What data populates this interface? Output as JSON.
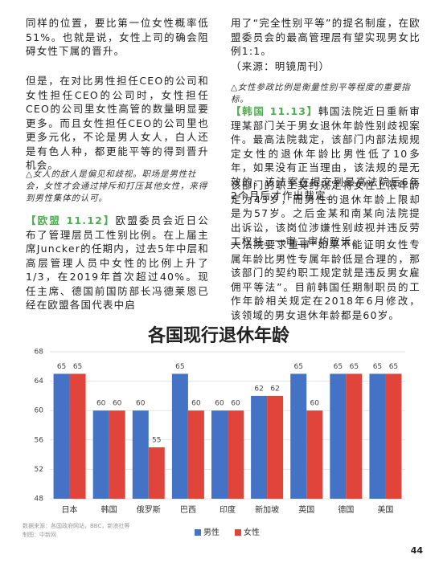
{
  "left_column": [
    {
      "text": "同样的位置，要比第一位女性概率低51%。也就是说，女性上司的确会阻碍女性下属的晋升。"
    },
    {
      "text": "但是，在对比男性担任CEO的公司和女性担任CEO的公司时，女性担任CEO的公司里女性高管的数量明显要更多。而且女性担任CEO的公司里也更多元化，不论是男人女人，白人还是有色人种，都更能平等的得到晋升机会。"
    },
    {
      "text": "△女人的敌人是偏见和歧视。职场是男性社会，女性才会通过排斥和打压其他女性，来得到男性集体的认可。"
    },
    {
      "tag": "【欧盟 11.12】",
      "text": "欧盟委员会近日公布了管理层员工性别比例。在上届主席Juncker的任期内，过去5年中层和高层管理人员中女性的比例上升了1/3，在2019年首次超过40%。现任主席、德国前国防部长冯德莱恩已经在欧盟各国代表中启"
    }
  ],
  "right_column": [
    {
      "text": "用了“完全性别平等”的提名制度，在欧盟委员会的最高管理层有望实现男女比例1:1。"
    },
    {
      "text": "（来源：明镜周刊）"
    },
    {
      "text": "△女性参政比例是衡量性别平等程度的重要指标。"
    },
    {
      "tag": "【韩国 11.13】",
      "text": "韩国法院近日重新审理某部门关于男女退休年龄性别歧视案件。最高法院裁定，该部门内部法规规定女性的退休年龄比男性低了10多年，如果没有正当理由，该法规的是无效的。该法案在提交到最高法院后6年2个月后才作出裁定。"
    },
    {
      "text": "该部门的职工契约规定将女性上限年龄定为43岁，而男性的退休年龄上限却是为57岁。之后金某和南某向法院提出诉讼，该岗位涉嫌性别歧视并违反劳工权益。一审二审均败诉。"
    },
    {
      "text": "大法院要求重审“如果不能证明女性专属年龄比男性专属年龄低是合理的，那该部门的契约职工规定就是违反男女雇佣平等法”。目前韩国任期制职员的工作年龄相关规定在2018年6月修改，该领域的男女退休年龄都是60岁。"
    }
  ],
  "chart_data": {
    "type": "bar",
    "title": "各国现行退休年龄",
    "categories": [
      "日本",
      "韩国",
      "俄罗斯",
      "巴西",
      "印度",
      "新加坡",
      "英国",
      "德国",
      "美国"
    ],
    "series": [
      {
        "name": "男性",
        "color": "#4472c4",
        "values": [
          65,
          60,
          60,
          65,
          60,
          62,
          65,
          65,
          65
        ]
      },
      {
        "name": "女性",
        "color": "#e0443a",
        "values": [
          65,
          60,
          55,
          60,
          60,
          62,
          60,
          65,
          65
        ]
      }
    ],
    "ylim": [
      48,
      68
    ],
    "yticks": [
      48,
      52,
      56,
      60,
      64,
      68
    ],
    "grid": true,
    "legend": "bottom",
    "source": "数据来源：各国政府网站，BBC，新浪社等",
    "credit": "制图：中新网"
  },
  "page_number": "44"
}
